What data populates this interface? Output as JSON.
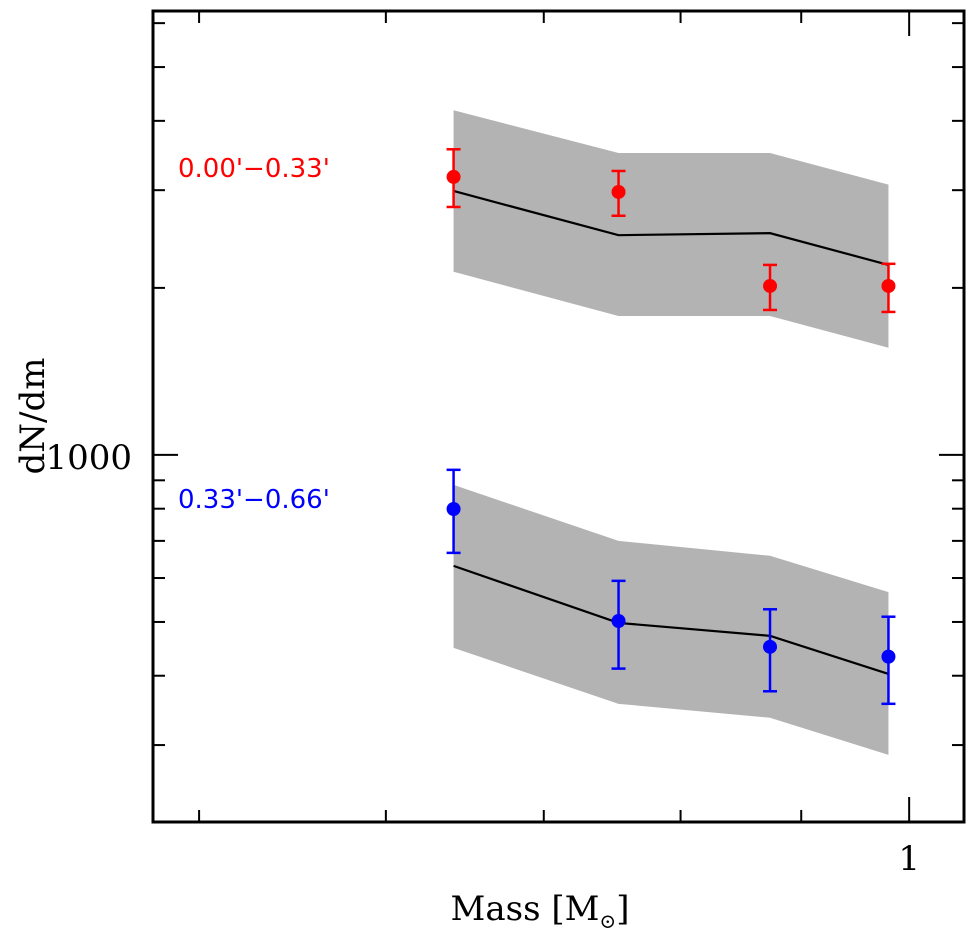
{
  "chart_data": {
    "type": "scatter",
    "title": "",
    "xlabel": "Mass [M⊙]",
    "ylabel": "dN/dm",
    "xscale": "log",
    "yscale": "log",
    "xlim": [
      0.478,
      1.055
    ],
    "ylim": [
      218,
      6310
    ],
    "x_major_ticks": [
      {
        "value": 1,
        "label": "1"
      }
    ],
    "x_minor_ticks": [
      0.5,
      0.6,
      0.7,
      0.8,
      0.9
    ],
    "y_major_ticks": [
      {
        "value": 1000,
        "label": "1000"
      }
    ],
    "y_minor_ticks": [
      300,
      400,
      500,
      600,
      700,
      800,
      900,
      2000,
      3000,
      4000,
      5000,
      6000
    ],
    "grid": false,
    "legend": "none",
    "series": [
      {
        "name": "0.00'−0.33'",
        "color": "#ff0000",
        "x": [
          0.641,
          0.753,
          0.873,
          0.98
        ],
        "y": [
          3170,
          2978,
          2016,
          2016
        ],
        "y_err_low": [
          2798,
          2698,
          1825,
          1810
        ],
        "y_err_high": [
          3555,
          3249,
          2200,
          2210
        ],
        "model_line": [
          2990,
          2489,
          2510,
          2200
        ],
        "model_band_low": [
          2138,
          1780,
          1780,
          1560
        ],
        "model_band_high": [
          4180,
          3500,
          3500,
          3070
        ]
      },
      {
        "name": "0.33'−0.66'",
        "color": "#0000ff",
        "x": [
          0.641,
          0.753,
          0.873,
          0.98
        ],
        "y": [
          799,
          502,
          451,
          433
        ],
        "y_err_low": [
          666,
          412,
          375,
          356
        ],
        "y_err_high": [
          940,
          593,
          527,
          511
        ],
        "model_line": [
          631,
          498,
          472,
          403
        ],
        "model_band_low": [
          449,
          356,
          336,
          288
        ],
        "model_band_high": [
          883,
          700,
          658,
          566
        ]
      }
    ],
    "annotations": [
      {
        "text": "0.00'−0.33'",
        "color": "#ff0000",
        "series": 0
      },
      {
        "text": "0.33'−0.66'",
        "color": "#0000ff",
        "series": 1
      }
    ],
    "band_color": "#b3b3b3",
    "line_color": "#000000"
  }
}
